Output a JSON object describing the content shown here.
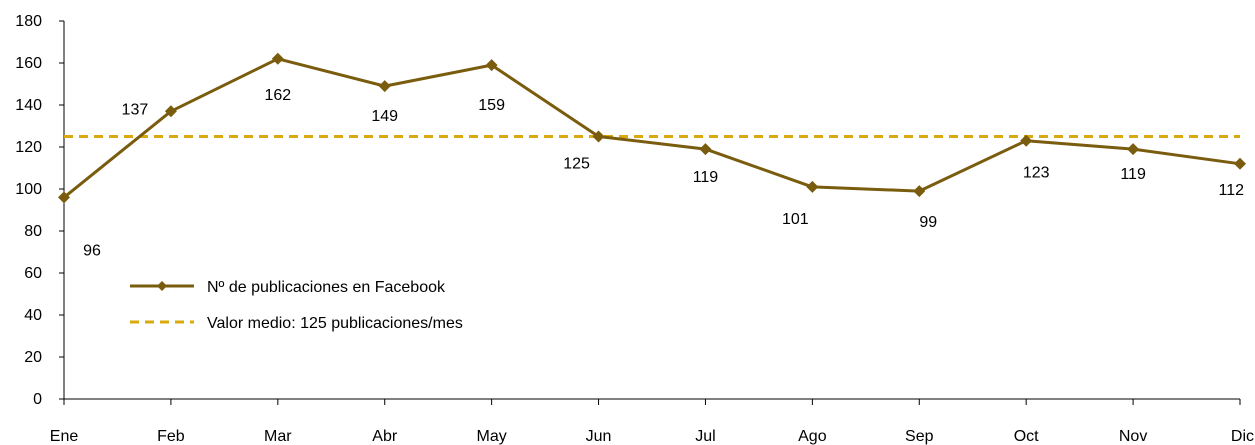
{
  "chart_data": {
    "type": "line",
    "categories": [
      "Ene",
      "Feb",
      "Mar",
      "Abr",
      "May",
      "Jun",
      "Jul",
      "Ago",
      "Sep",
      "Oct",
      "Nov",
      "Dic"
    ],
    "series": [
      {
        "name": "Nº de publicaciones en Facebook",
        "values": [
          96,
          137,
          162,
          149,
          159,
          125,
          119,
          101,
          99,
          123,
          119,
          112
        ],
        "color": "#7a5c0e",
        "marker": "diamond"
      },
      {
        "name": "Valor medio: 125 publicaciones/mes",
        "values": [
          125,
          125,
          125,
          125,
          125,
          125,
          125,
          125,
          125,
          125,
          125,
          125
        ],
        "color": "#d9a90f",
        "style": "dashed"
      }
    ],
    "data_labels": [
      "96",
      "137",
      "162",
      "149",
      "159",
      "125",
      "119",
      "101",
      "99",
      "123",
      "119",
      "112"
    ],
    "yticks": [
      "0",
      "20",
      "40",
      "60",
      "80",
      "100",
      "120",
      "140",
      "160",
      "180"
    ],
    "ylim": [
      0,
      180
    ],
    "grid": false,
    "legend_position": "lower-left"
  }
}
